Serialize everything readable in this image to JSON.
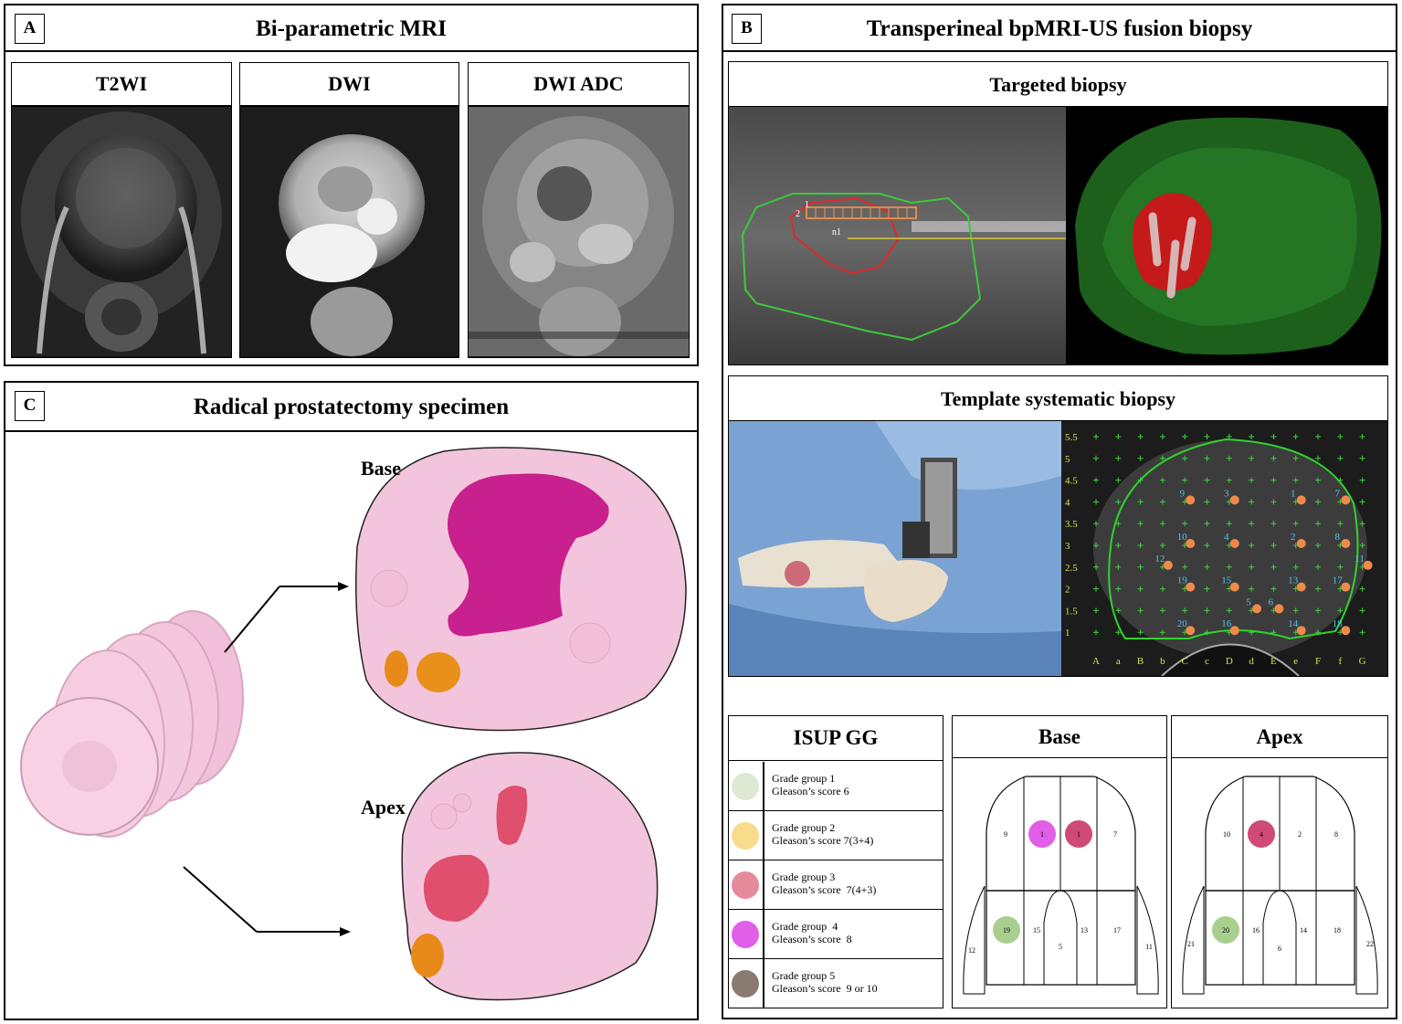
{
  "panelA": {
    "letter": "A",
    "title": "Bi-parametric MRI",
    "images": [
      {
        "label": "T2WI"
      },
      {
        "label": "DWI"
      },
      {
        "label": "DWI ADC"
      }
    ]
  },
  "panelB": {
    "letter": "B",
    "title": "Transperineal bpMRI-US fusion biopsy",
    "targeted": {
      "title": "Targeted biopsy",
      "us_labels": [
        "1",
        "2",
        "n1"
      ]
    },
    "template": {
      "title": "Template systematic biopsy",
      "grid_y_labels": [
        "5.5",
        "5",
        "4.5",
        "4",
        "3.5",
        "3",
        "2.5",
        "2",
        "1.5",
        "1"
      ],
      "grid_x_labels": [
        "A",
        "a",
        "B",
        "b",
        "C",
        "c",
        "D",
        "d",
        "E",
        "e",
        "F",
        "f",
        "G"
      ],
      "needle_labels": [
        "9",
        "3",
        "1",
        "7",
        "10",
        "4",
        "2",
        "8",
        "12",
        "11",
        "19",
        "15",
        "13",
        "17",
        "5",
        "6",
        "20",
        "16",
        "14",
        "18"
      ]
    },
    "legend": {
      "title": "ISUP GG",
      "items": [
        {
          "line1": "Grade group 1",
          "line2": "Gleason’s score 6",
          "color": "#dde9d3"
        },
        {
          "line1": "Grade group 2",
          "line2": "Gleason’s score 7(3+4)",
          "color": "#f8dc8c"
        },
        {
          "line1": "Grade group 3",
          "line2": "Gleason’s score  7(4+3)",
          "color": "#e58a9a"
        },
        {
          "line1": "Grade group  4",
          "line2": "Gleason’s score  8",
          "color": "#e05ee8"
        },
        {
          "line1": "Grade group 5",
          "line2": "Gleason’s score  9 or 10",
          "color": "#8a7a72"
        }
      ]
    },
    "base_map": {
      "title": "Base",
      "upper_labels": [
        "9",
        "1",
        "1",
        "7"
      ],
      "lower_labels": [
        "19",
        "15",
        "13",
        "17"
      ],
      "side_labels": [
        "12",
        "11"
      ],
      "center_label": "5",
      "dot_colors": [
        "#e05ee8",
        "#d04a78",
        "#a9cf8f"
      ]
    },
    "apex_map": {
      "title": "Apex",
      "upper_labels": [
        "10",
        "4",
        "2",
        "8"
      ],
      "lower_labels": [
        "20",
        "16",
        "14",
        "18"
      ],
      "side_labels": [
        "21",
        "22"
      ],
      "center_label": "6",
      "dot_colors": [
        "#d04a78",
        "#a9cf8f"
      ]
    }
  },
  "panelC": {
    "letter": "C",
    "title": "Radical prostatectomy specimen",
    "base_label": "Base",
    "apex_label": "Apex",
    "colors": {
      "tissue": "#f3c5dc",
      "tumor_gg4": "#c8208e",
      "tumor_gg3": "#e0506e",
      "tumor_gg2": "#e88a1a"
    }
  }
}
